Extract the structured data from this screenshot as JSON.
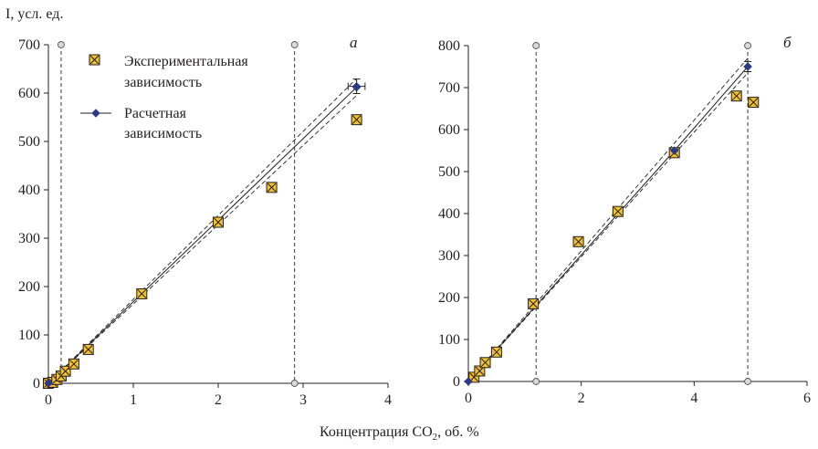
{
  "figure": {
    "y_axis_label": "I, усл. ед.",
    "x_axis_label_prefix": "Концентрация CO",
    "x_axis_label_sub": "2",
    "x_axis_label_suffix": ", об. %"
  },
  "legend": {
    "experimental_line1": "Экспериментальная",
    "experimental_line2": "зависимость",
    "calculated_line1": "Расчетная",
    "calculated_line2": "зависимость"
  },
  "colors": {
    "marker_fill": "#f2c12e",
    "marker_stroke": "#231f20",
    "calculated_marker": "#2e3a87",
    "line": "#231f20"
  },
  "chart_data": [
    {
      "panel_label": "а",
      "type": "scatter",
      "xlim": [
        0,
        4
      ],
      "ylim": [
        0,
        700
      ],
      "x_ticks": [
        0,
        1,
        2,
        3,
        4
      ],
      "y_ticks": [
        0,
        100,
        200,
        300,
        400,
        500,
        600,
        700
      ],
      "x_tick_labels": [
        "0",
        "1",
        "2",
        "3",
        "4"
      ],
      "y_tick_labels": [
        "0",
        "100",
        "200",
        "300",
        "400",
        "500",
        "600",
        "700"
      ],
      "experimental": {
        "x": [
          0,
          0.05,
          0.1,
          0.15,
          0.2,
          0.3,
          0.47,
          1.1,
          2.0,
          2.63,
          3.63
        ],
        "y": [
          0,
          2,
          8,
          15,
          25,
          40,
          70,
          185,
          333,
          405,
          545
        ]
      },
      "calculated": {
        "x": [
          0,
          3.63
        ],
        "y": [
          0,
          612
        ]
      },
      "calculated_error_point": {
        "x": 3.63,
        "y": 614,
        "y_err": 15,
        "x_err": 0.1
      },
      "confidence_upper": {
        "x": [
          0,
          3.63
        ],
        "y": [
          0,
          630
        ]
      },
      "confidence_lower": {
        "x": [
          0,
          3.63
        ],
        "y": [
          0,
          595
        ]
      },
      "reference_lines": [
        {
          "x": 0.15,
          "y_top": 700
        },
        {
          "x": 2.9,
          "y_top": 700,
          "y_bottom": 0
        }
      ]
    },
    {
      "panel_label": "б",
      "type": "scatter",
      "xlim": [
        0,
        6
      ],
      "ylim": [
        0,
        800
      ],
      "x_ticks": [
        0,
        2,
        4,
        6
      ],
      "y_ticks": [
        0,
        100,
        200,
        300,
        400,
        500,
        600,
        700,
        800
      ],
      "x_tick_labels": [
        "0",
        "2",
        "4",
        "6"
      ],
      "y_tick_labels": [
        "0",
        "100",
        "200",
        "300",
        "400",
        "500",
        "600",
        "700",
        "800"
      ],
      "experimental": {
        "x": [
          0.1,
          0.2,
          0.3,
          0.5,
          1.15,
          1.95,
          2.65,
          3.65,
          4.75,
          5.05
        ],
        "y": [
          10,
          25,
          45,
          70,
          185,
          333,
          405,
          545,
          680,
          665
        ]
      },
      "calculated": {
        "x": [
          0,
          3.65,
          4.95
        ],
        "y": [
          0,
          550,
          750
        ]
      },
      "calculated_error_point": {
        "x": 4.95,
        "y": 750,
        "y_err": 12,
        "x_err": 0
      },
      "confidence_upper": {
        "x": [
          0,
          4.95
        ],
        "y": [
          0,
          770
        ]
      },
      "confidence_lower": {
        "x": [
          0,
          4.95
        ],
        "y": [
          0,
          735
        ]
      },
      "reference_lines": [
        {
          "x": 1.2,
          "y_top": 800,
          "y_bottom": 0
        },
        {
          "x": 4.95,
          "y_top": 800,
          "y_bottom": 0
        }
      ]
    }
  ]
}
